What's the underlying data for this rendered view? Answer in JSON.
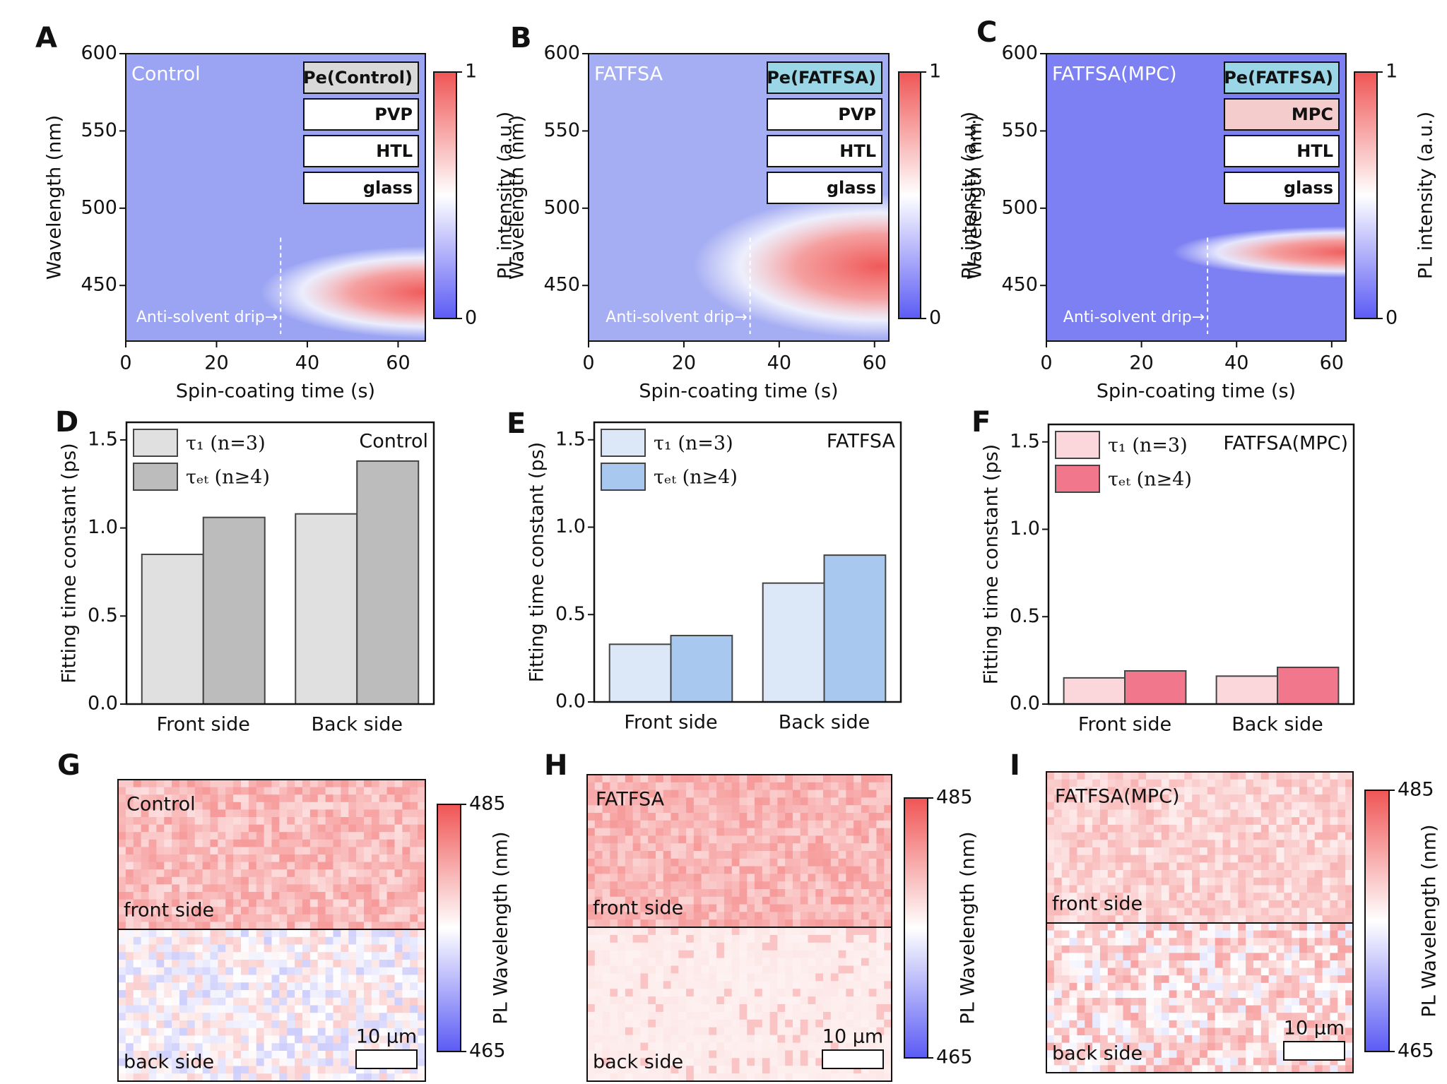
{
  "chart_data": [
    {
      "type": "heatmap",
      "panel": "A",
      "label": "Control",
      "layers": [
        {
          "label": "Pe(Control)",
          "color": "#d9d9d9"
        },
        {
          "label": "PVP",
          "color": "#ffffff"
        },
        {
          "label": "HTL",
          "color": "#ffffff"
        },
        {
          "label": "glass",
          "color": "#ffffff"
        }
      ],
      "annotation": "Anti-solvent drip→",
      "xlabel": "Spin-coating time (s)",
      "ylabel": "Wavelength (nm)",
      "xlim": [
        0,
        66
      ],
      "xticks": [
        0,
        20,
        40,
        60
      ],
      "ylim": [
        414,
        600
      ],
      "yticks": [
        450,
        500,
        550,
        600
      ],
      "colorbar": {
        "label": "PL intensity (a.u.)",
        "lim": [
          0,
          1
        ],
        "ticks": [
          0,
          1
        ]
      }
    },
    {
      "type": "heatmap",
      "panel": "B",
      "label": "FATFSA",
      "layers": [
        {
          "label": "Pe(FATFSA)",
          "color": "#9ad6e6"
        },
        {
          "label": "PVP",
          "color": "#ffffff"
        },
        {
          "label": "HTL",
          "color": "#ffffff"
        },
        {
          "label": "glass",
          "color": "#ffffff"
        }
      ],
      "annotation": "Anti-solvent drip→",
      "xlabel": "Spin-coating time (s)",
      "ylabel": "Wavelength (nm)",
      "xlim": [
        0,
        63
      ],
      "xticks": [
        0,
        20,
        40,
        60
      ],
      "ylim": [
        414,
        600
      ],
      "yticks": [
        450,
        500,
        550,
        600
      ],
      "colorbar": {
        "label": "PL intensity (a.u.)",
        "lim": [
          0,
          1
        ],
        "ticks": [
          0,
          1
        ]
      }
    },
    {
      "type": "heatmap",
      "panel": "C",
      "label": "FATFSA(MPC)",
      "layers": [
        {
          "label": "Pe(FATFSA)",
          "color": "#9ad6e6"
        },
        {
          "label": "MPC",
          "color": "#f4cccc"
        },
        {
          "label": "HTL",
          "color": "#ffffff"
        },
        {
          "label": "glass",
          "color": "#ffffff"
        }
      ],
      "annotation": "Anti-solvent drip→",
      "xlabel": "Spin-coating time (s)",
      "ylabel": "Wavelength (nm)",
      "xlim": [
        0,
        63
      ],
      "xticks": [
        0,
        20,
        40,
        60
      ],
      "ylim": [
        414,
        600
      ],
      "yticks": [
        450,
        500,
        550,
        600
      ],
      "colorbar": {
        "label": "PL intensity (a.u.)",
        "lim": [
          0,
          1
        ],
        "ticks": [
          0,
          1
        ]
      }
    },
    {
      "type": "bar",
      "panel": "D",
      "label": "Control",
      "categories": [
        "Front side",
        "Back side"
      ],
      "series": [
        {
          "name": "τ₁ (n=3)",
          "color": "#e0e0e0",
          "values": [
            0.85,
            1.08
          ]
        },
        {
          "name": "τₑₜ (n≥4)",
          "color": "#bcbcbc",
          "values": [
            1.06,
            1.38
          ]
        }
      ],
      "ylabel": "Fitting time constant (ps)",
      "ylim": [
        0,
        1.6
      ],
      "yticks": [
        {
          "value": 0,
          "label": "0.0"
        },
        0.5,
        {
          "value": 1,
          "label": "1.0"
        },
        1.5
      ]
    },
    {
      "type": "bar",
      "panel": "E",
      "label": "FATFSA",
      "categories": [
        "Front side",
        "Back side"
      ],
      "series": [
        {
          "name": "τ₁ (n=3)",
          "color": "#dce8f8",
          "values": [
            0.33,
            0.68
          ]
        },
        {
          "name": "τₑₜ (n≥4)",
          "color": "#a9c8f0",
          "values": [
            0.38,
            0.84
          ]
        }
      ],
      "ylabel": "Fitting time constant (ps)",
      "ylim": [
        0,
        1.6
      ],
      "yticks": [
        {
          "value": 0,
          "label": "0.0"
        },
        0.5,
        {
          "value": 1,
          "label": "1.0"
        },
        1.5
      ]
    },
    {
      "type": "bar",
      "panel": "F",
      "label": "FATFSA(MPC)",
      "categories": [
        "Front side",
        "Back side"
      ],
      "series": [
        {
          "name": "τ₁ (n=3)",
          "color": "#fbd7dc",
          "values": [
            0.15,
            0.16
          ]
        },
        {
          "name": "τₑₜ (n≥4)",
          "color": "#f0778c",
          "values": [
            0.19,
            0.21
          ]
        }
      ],
      "ylabel": "Fitting time constant (ps)",
      "ylim": [
        0,
        1.6
      ],
      "yticks": [
        {
          "value": 0,
          "label": "0.0"
        },
        0.5,
        {
          "value": 1,
          "label": "1.0"
        },
        1.5
      ]
    },
    {
      "type": "map",
      "panel": "G",
      "label": "Control",
      "regions": [
        "front side",
        "back side"
      ],
      "scale_bar": "10 µm",
      "colorbar": {
        "label": "PL Wavelength (nm)",
        "lim": [
          465,
          485
        ],
        "ticks": [
          465,
          485
        ]
      }
    },
    {
      "type": "map",
      "panel": "H",
      "label": "FATFSA",
      "regions": [
        "front side",
        "back side"
      ],
      "scale_bar": "10 µm",
      "colorbar": {
        "label": "PL Wavelength (nm)",
        "lim": [
          465,
          485
        ],
        "ticks": [
          465,
          485
        ]
      }
    },
    {
      "type": "map",
      "panel": "I",
      "label": "FATFSA(MPC)",
      "regions": [
        "front side",
        "back side"
      ],
      "scale_bar": "10 µm",
      "colorbar": {
        "label": "PL Wavelength (nm)",
        "lim": [
          465,
          485
        ],
        "ticks": [
          465,
          485
        ]
      }
    }
  ]
}
